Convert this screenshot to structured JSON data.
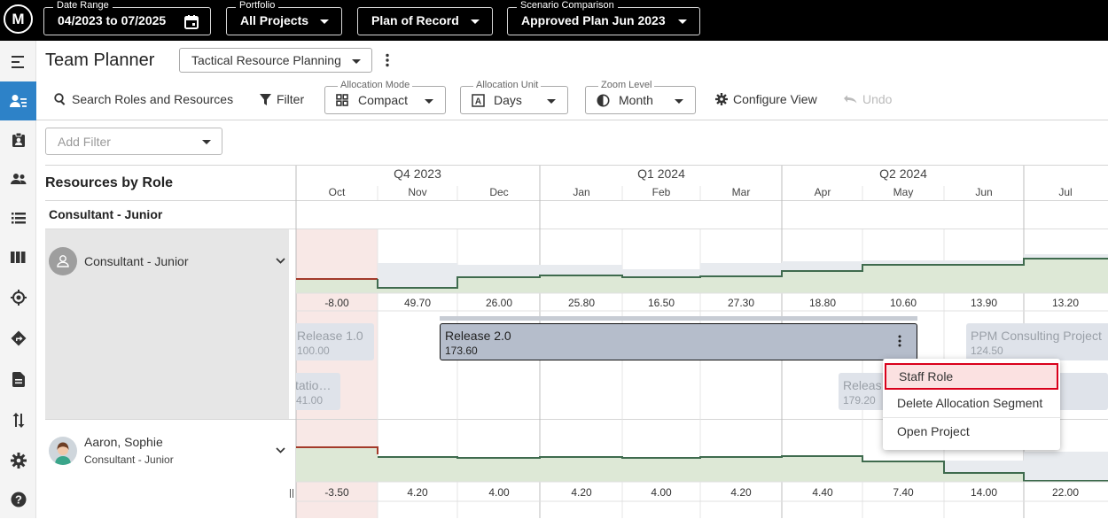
{
  "topbar": {
    "logo": "M",
    "date_range": {
      "label": "Date Range",
      "value": "04/2023 to 07/2025"
    },
    "portfolio": {
      "label": "Portfolio",
      "value": "All Projects"
    },
    "plan": {
      "value": "Plan of Record"
    },
    "scenario": {
      "label": "Scenario Comparison",
      "value": "Approved Plan Jun 2023"
    }
  },
  "sidebar": {
    "items": [
      {
        "icon": "menu-collapse-icon"
      },
      {
        "icon": "team-planner-icon",
        "active": true
      },
      {
        "icon": "badge-icon"
      },
      {
        "icon": "people-icon"
      },
      {
        "icon": "list-icon"
      },
      {
        "icon": "columns-icon"
      },
      {
        "icon": "target-icon"
      },
      {
        "icon": "directions-icon"
      },
      {
        "icon": "document-icon"
      },
      {
        "icon": "swap-vertical-icon"
      },
      {
        "icon": "gear-icon"
      },
      {
        "icon": "help-icon"
      }
    ]
  },
  "header": {
    "title": "Team Planner",
    "view_select": "Tactical Resource Planning"
  },
  "toolbar": {
    "search_label": "Search Roles and Resources",
    "filter_label": "Filter",
    "allocation_mode": {
      "label": "Allocation Mode",
      "value": "Compact"
    },
    "allocation_unit": {
      "label": "Allocation Unit",
      "value": "Days"
    },
    "zoom_level": {
      "label": "Zoom Level",
      "value": "Month"
    },
    "configure_label": "Configure View",
    "undo_label": "Undo"
  },
  "add_filter": {
    "placeholder": "Add Filter"
  },
  "grid": {
    "left_header": "Resources by Role",
    "group_title": "Consultant - Junior",
    "quarters": [
      "Q4 2023",
      "Q1 2024",
      "Q2 2024"
    ],
    "months": [
      "Oct",
      "Nov",
      "Dec",
      "Jan",
      "Feb",
      "Mar",
      "Apr",
      "May",
      "Jun",
      "Jul"
    ],
    "rows": [
      {
        "name": "Consultant - Junior",
        "subtitle": "",
        "values": [
          "-8.00",
          "49.70",
          "26.00",
          "25.80",
          "16.50",
          "27.30",
          "18.80",
          "10.60",
          "13.90",
          "13.20"
        ]
      },
      {
        "name": "Aaron, Sophie",
        "subtitle": "Consultant - Junior",
        "values": [
          "-3.50",
          "4.20",
          "4.00",
          "4.20",
          "4.00",
          "4.20",
          "4.40",
          "7.40",
          "14.00",
          "22.00"
        ]
      }
    ],
    "allocations": [
      {
        "name": "Release 1.0",
        "value": "100.00"
      },
      {
        "name": "Release 2.0",
        "value": "173.60"
      },
      {
        "name": "PPM Consulting Project",
        "value": "124.50"
      },
      {
        "name": "tatio…",
        "value": "41.00"
      },
      {
        "name": "Releas",
        "value": "179.20"
      }
    ]
  },
  "context_menu": {
    "items": [
      "Staff Role",
      "Delete Allocation Segment",
      "Open Project"
    ],
    "highlight_color": "#d9001b"
  },
  "colors": {
    "accent": "#2d82c8",
    "capacity_fill": "#dde8d6",
    "capacity_line": "#3f6b4e",
    "overalloc": "#a33a2a"
  }
}
